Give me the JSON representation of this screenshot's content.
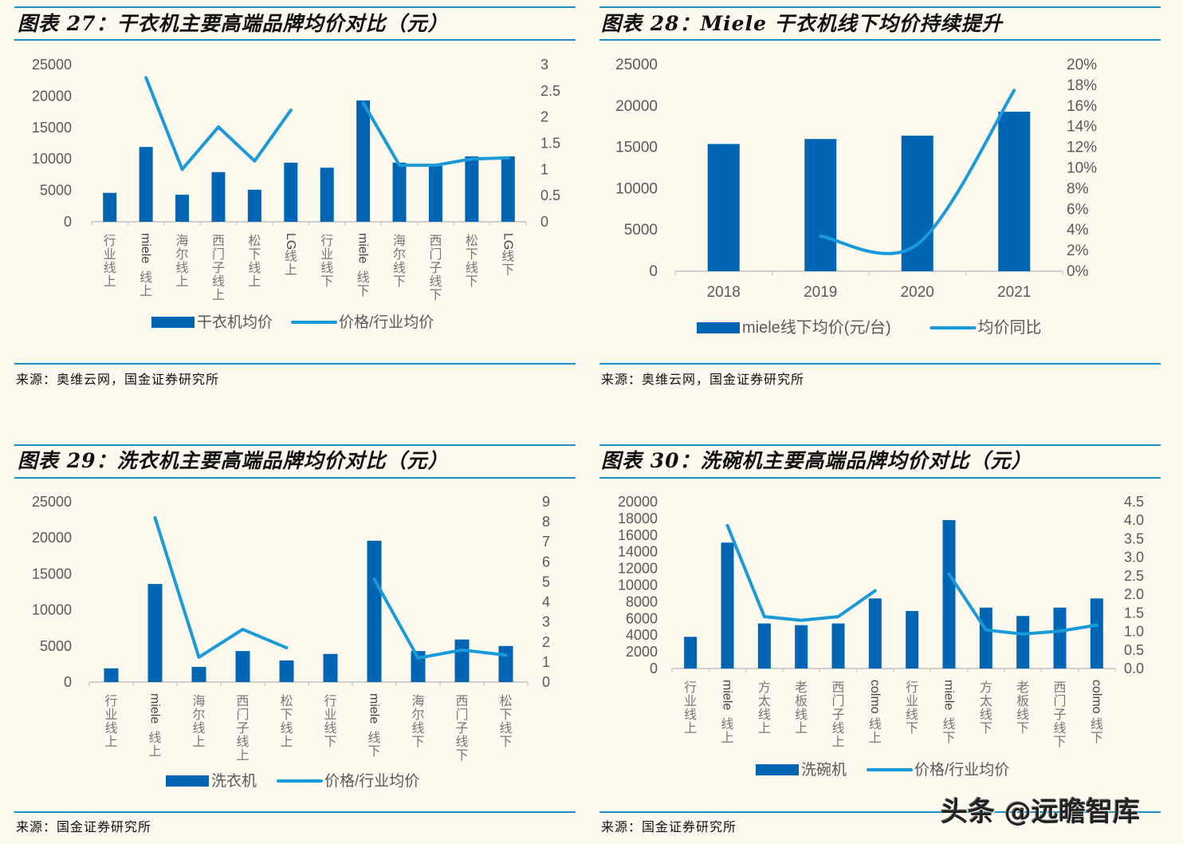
{
  "colors": {
    "background": "#fdf9ef",
    "bar": "#0066b3",
    "line": "#1a9ad9",
    "rule": "#1b8fc6",
    "axis_text": "#595959",
    "axis_line": "#d0d0d0"
  },
  "watermark": "头条 @远瞻智库",
  "panels": [
    {
      "title": "图表 27：干衣机主要高端品牌均价对比（元）",
      "source": "来源：奥维云网，国金证券研究所"
    },
    {
      "title": "图表 28：Miele 干衣机线下均价持续提升",
      "source": "来源：奥维云网，国金证券研究所"
    },
    {
      "title": "图表 29：洗衣机主要高端品牌均价对比（元）",
      "source": "来源：国金证券研究所"
    },
    {
      "title": "图表 30：洗碗机主要高端品牌均价对比（元）",
      "source": "来源：国金证券研究所"
    }
  ],
  "chart_data": [
    {
      "type": "bar+line",
      "title": "图表 27：干衣机主要高端品牌均价对比（元）",
      "categories": [
        "行业线上",
        "miele线上",
        "海尔线上",
        "西门子线上",
        "松下线上",
        "LG线上",
        "行业线下",
        "miele线下",
        "海尔线下",
        "西门子线下",
        "松下线下",
        "LG线下"
      ],
      "series": [
        {
          "name": "干衣机均价",
          "type": "bar",
          "axis": "left",
          "values": [
            4600,
            11900,
            4300,
            7900,
            5100,
            9400,
            8600,
            19300,
            9400,
            8900,
            10400,
            10400
          ]
        },
        {
          "name": "价格/行业均价",
          "type": "line",
          "axis": "right",
          "segments": [
            [
              1,
              5
            ],
            [
              7,
              11
            ]
          ],
          "values": [
            null,
            2.75,
            1.0,
            1.81,
            1.16,
            2.13,
            null,
            2.27,
            1.08,
            1.08,
            1.2,
            1.22
          ]
        }
      ],
      "yleft": {
        "min": 0,
        "max": 25000,
        "ticks": [
          "0",
          "5000",
          "10000",
          "15000",
          "20000",
          "25000"
        ]
      },
      "yright": {
        "min": 0,
        "max": 3,
        "ticks": [
          "0",
          "0.5",
          "1",
          "1.5",
          "2",
          "2.5",
          "3"
        ]
      },
      "legend_position": "bottom",
      "grid": false
    },
    {
      "type": "bar+line",
      "title": "图表 28：Miele 干衣机线下均价持续提升",
      "categories": [
        "2018",
        "2019",
        "2020",
        "2021"
      ],
      "series": [
        {
          "name": "miele线下均价(元/台)",
          "type": "bar",
          "axis": "left",
          "values": [
            15400,
            16000,
            16400,
            19300
          ]
        },
        {
          "name": "均价同比",
          "type": "line",
          "axis": "right",
          "smooth": true,
          "segments": [
            [
              1,
              3
            ]
          ],
          "values": [
            null,
            3.4,
            2.6,
            17.5
          ]
        }
      ],
      "yleft": {
        "min": 0,
        "max": 25000,
        "ticks": [
          "0",
          "5000",
          "10000",
          "15000",
          "20000",
          "25000"
        ]
      },
      "yright": {
        "min": 0,
        "max": 20,
        "ticks": [
          "0%",
          "2%",
          "4%",
          "6%",
          "8%",
          "10%",
          "12%",
          "14%",
          "16%",
          "18%",
          "20%"
        ]
      },
      "legend_position": "bottom",
      "grid": false
    },
    {
      "type": "bar+line",
      "title": "图表 29：洗衣机主要高端品牌均价对比（元）",
      "categories": [
        "行业线上",
        "miele线上",
        "海尔线上",
        "西门子线上",
        "松下线上",
        "行业线下",
        "miele线下",
        "海尔线下",
        "西门子线下",
        "松下线下"
      ],
      "series": [
        {
          "name": "洗衣机",
          "type": "bar",
          "axis": "left",
          "values": [
            1900,
            13600,
            2100,
            4300,
            3000,
            3900,
            19600,
            4300,
            5900,
            5000
          ]
        },
        {
          "name": "价格/行业均价",
          "type": "line",
          "axis": "right",
          "segments": [
            [
              1,
              4
            ],
            [
              6,
              9
            ]
          ],
          "values": [
            null,
            8.2,
            1.24,
            2.63,
            1.71,
            null,
            5.14,
            1.2,
            1.6,
            1.35
          ]
        }
      ],
      "yleft": {
        "min": 0,
        "max": 25000,
        "ticks": [
          "0",
          "5000",
          "10000",
          "15000",
          "20000",
          "25000"
        ]
      },
      "yright": {
        "min": 0,
        "max": 9,
        "ticks": [
          "0",
          "1",
          "2",
          "3",
          "4",
          "5",
          "6",
          "7",
          "8",
          "9"
        ]
      },
      "legend_position": "bottom",
      "grid": false
    },
    {
      "type": "bar+line",
      "title": "图表 30：洗碗机主要高端品牌均价对比（元）",
      "categories": [
        "行业线上",
        "miele线上",
        "方太线上",
        "老板线上",
        "西门子线上",
        "colmo线上",
        "行业线下",
        "miele线下",
        "方太线下",
        "老板线下",
        "西门子线下",
        "colmo线下"
      ],
      "series": [
        {
          "name": "洗碗机",
          "type": "bar",
          "axis": "left",
          "values": [
            3800,
            15100,
            5400,
            5200,
            5400,
            8400,
            6900,
            17800,
            7300,
            6300,
            7300,
            8400
          ]
        },
        {
          "name": "价格/行业均价",
          "type": "line",
          "axis": "right",
          "segments": [
            [
              1,
              5
            ],
            [
              7,
              11
            ]
          ],
          "values": [
            null,
            3.86,
            1.4,
            1.3,
            1.4,
            2.1,
            null,
            2.55,
            1.04,
            0.93,
            1.01,
            1.17
          ]
        }
      ],
      "yleft": {
        "min": 0,
        "max": 20000,
        "ticks": [
          "0",
          "2000",
          "4000",
          "6000",
          "8000",
          "10000",
          "12000",
          "14000",
          "16000",
          "18000",
          "20000"
        ]
      },
      "yright": {
        "min": 0,
        "max": 4.5,
        "ticks": [
          "0.0",
          "0.5",
          "1.0",
          "1.5",
          "2.0",
          "2.5",
          "3.0",
          "3.5",
          "4.0",
          "4.5"
        ]
      },
      "legend_position": "bottom",
      "grid": false
    }
  ]
}
